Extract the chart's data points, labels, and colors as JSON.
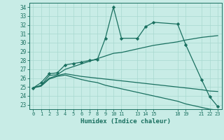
{
  "xlabel": "Humidex (Indice chaleur)",
  "bg_color": "#c8ece6",
  "grid_color": "#a8d8d0",
  "line_color": "#1a7060",
  "xlim": [
    -0.5,
    23.5
  ],
  "ylim": [
    22.5,
    34.5
  ],
  "xticks": [
    0,
    1,
    2,
    3,
    4,
    5,
    6,
    7,
    8,
    9,
    10,
    11,
    13,
    14,
    15,
    18,
    19,
    21,
    22,
    23
  ],
  "yticks": [
    23,
    24,
    25,
    26,
    27,
    28,
    29,
    30,
    31,
    32,
    33,
    34
  ],
  "series": [
    {
      "x": [
        0,
        1,
        2,
        3,
        4,
        5,
        6,
        7,
        8,
        9,
        10,
        11,
        13,
        14,
        15,
        18,
        19,
        21,
        22,
        23
      ],
      "y": [
        24.9,
        25.5,
        26.5,
        26.6,
        27.5,
        27.65,
        27.8,
        28.0,
        28.1,
        30.5,
        34.0,
        30.5,
        30.5,
        31.8,
        32.3,
        32.1,
        29.8,
        25.8,
        23.9,
        22.8
      ],
      "marker": "D",
      "markersize": 2.2,
      "linewidth": 0.9
    },
    {
      "x": [
        0,
        1,
        2,
        3,
        4,
        5,
        6,
        7,
        8,
        9,
        10,
        11,
        13,
        14,
        15,
        18,
        19,
        21,
        22,
        23
      ],
      "y": [
        24.9,
        25.2,
        26.3,
        26.4,
        27.0,
        27.3,
        27.6,
        27.9,
        28.2,
        28.5,
        28.8,
        28.9,
        29.3,
        29.5,
        29.7,
        30.1,
        30.3,
        30.6,
        30.7,
        30.8
      ],
      "marker": null,
      "linewidth": 0.9
    },
    {
      "x": [
        0,
        1,
        2,
        3,
        4,
        5,
        6,
        7,
        8,
        9,
        10,
        11,
        13,
        14,
        15,
        18,
        19,
        21,
        22,
        23
      ],
      "y": [
        24.9,
        25.15,
        26.0,
        26.3,
        26.5,
        26.35,
        26.2,
        26.1,
        26.0,
        25.9,
        25.8,
        25.7,
        25.5,
        25.4,
        25.3,
        25.0,
        24.9,
        24.7,
        24.55,
        24.5
      ],
      "marker": null,
      "linewidth": 0.9
    },
    {
      "x": [
        0,
        1,
        2,
        3,
        4,
        5,
        6,
        7,
        8,
        9,
        10,
        11,
        13,
        14,
        15,
        18,
        19,
        21,
        22,
        23
      ],
      "y": [
        24.9,
        25.1,
        25.9,
        26.2,
        26.35,
        26.1,
        25.85,
        25.65,
        25.5,
        25.2,
        25.0,
        24.8,
        24.4,
        24.2,
        24.0,
        23.4,
        23.1,
        22.7,
        22.5,
        22.4
      ],
      "marker": null,
      "linewidth": 0.9
    }
  ]
}
